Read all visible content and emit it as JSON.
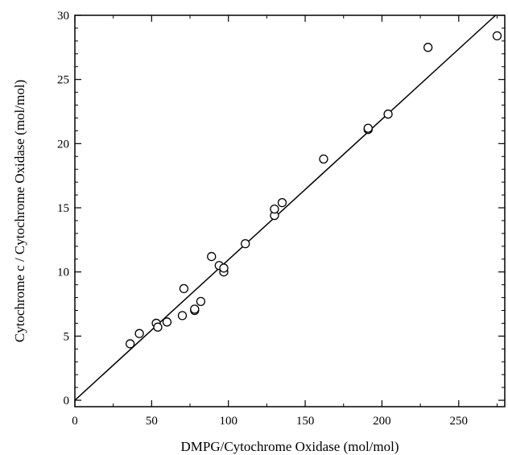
{
  "chart_data": {
    "type": "scatter",
    "title": "",
    "xlabel": "DMPG/Cytochrome Oxidase (mol/mol)",
    "ylabel": "Cytochrome c / Cytochrome Oxidase (mol/mol)",
    "xlim": [
      0,
      280
    ],
    "ylim": [
      -0.5,
      30
    ],
    "xticks": [
      0,
      50,
      100,
      150,
      200,
      250
    ],
    "yticks": [
      0,
      5,
      10,
      15,
      20,
      25,
      30
    ],
    "grid": false,
    "marker": "open-circle",
    "colors": {
      "marker": "#000000",
      "line": "#000000",
      "axis": "#000000"
    },
    "points": [
      {
        "x": 36,
        "y": 4.4
      },
      {
        "x": 42,
        "y": 5.2
      },
      {
        "x": 53,
        "y": 6.0
      },
      {
        "x": 54,
        "y": 5.7
      },
      {
        "x": 60,
        "y": 6.1
      },
      {
        "x": 70,
        "y": 6.6
      },
      {
        "x": 71,
        "y": 8.7
      },
      {
        "x": 78,
        "y": 7.0
      },
      {
        "x": 78,
        "y": 7.1
      },
      {
        "x": 82,
        "y": 7.7
      },
      {
        "x": 89,
        "y": 11.2
      },
      {
        "x": 94,
        "y": 10.5
      },
      {
        "x": 97,
        "y": 10.0
      },
      {
        "x": 97,
        "y": 10.3
      },
      {
        "x": 111,
        "y": 12.2
      },
      {
        "x": 130,
        "y": 14.4
      },
      {
        "x": 130,
        "y": 14.9
      },
      {
        "x": 135,
        "y": 15.4
      },
      {
        "x": 162,
        "y": 18.8
      },
      {
        "x": 191,
        "y": 21.1
      },
      {
        "x": 191,
        "y": 21.2
      },
      {
        "x": 204,
        "y": 22.3
      },
      {
        "x": 230,
        "y": 27.5
      },
      {
        "x": 275,
        "y": 28.4
      }
    ],
    "fit_line": {
      "x": [
        0,
        274
      ],
      "y": [
        0,
        30
      ]
    }
  }
}
